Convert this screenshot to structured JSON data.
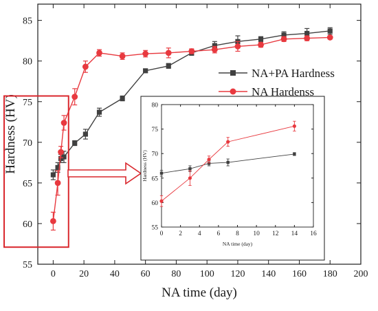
{
  "chart_data": [
    {
      "id": "main",
      "type": "line",
      "xlabel": "NA time (day)",
      "ylabel": "Hardness (HV)",
      "xlim": [
        -10,
        200
      ],
      "ylim": [
        55,
        87
      ],
      "xticks": [
        0,
        20,
        40,
        60,
        80,
        100,
        120,
        140,
        160,
        180,
        200
      ],
      "yticks": [
        55,
        60,
        65,
        70,
        75,
        80,
        85
      ],
      "grid": false,
      "legend_position": "right",
      "series": [
        {
          "name": "NA+PA Hardness",
          "color": "#404040",
          "marker": "square",
          "x": [
            0,
            3,
            5,
            7,
            14,
            21,
            30,
            45,
            60,
            75,
            90,
            105,
            120,
            135,
            150,
            165,
            180
          ],
          "y": [
            66.0,
            66.9,
            68.0,
            68.2,
            69.9,
            71.0,
            73.7,
            75.4,
            78.8,
            79.4,
            81.0,
            81.9,
            82.4,
            82.7,
            83.2,
            83.4,
            83.7
          ],
          "err": [
            0.6,
            0.6,
            0.5,
            0.7,
            0.3,
            0.6,
            0.5,
            0.3,
            0.2,
            0.3,
            0.3,
            0.5,
            0.7,
            0.3,
            0.4,
            0.6,
            0.4
          ]
        },
        {
          "name": "NA Hardenss",
          "color": "#e8393f",
          "marker": "circle",
          "x": [
            0,
            3,
            5,
            7,
            14,
            21,
            30,
            45,
            60,
            75,
            90,
            105,
            120,
            135,
            150,
            165,
            180
          ],
          "y": [
            60.3,
            65.0,
            68.8,
            72.4,
            75.6,
            79.3,
            81.0,
            80.6,
            80.9,
            81.0,
            81.2,
            81.4,
            81.8,
            82.0,
            82.7,
            82.8,
            82.9
          ],
          "err": [
            1.1,
            1.5,
            0.7,
            0.9,
            1.0,
            0.7,
            0.4,
            0.4,
            0.4,
            0.6,
            0.3,
            0.4,
            0.6,
            0.3,
            0.3,
            0.3,
            0.2
          ]
        }
      ]
    },
    {
      "id": "inset",
      "type": "line",
      "xlabel": "NA time (day)",
      "ylabel": "Hardness (HV)",
      "xlim": [
        0,
        16
      ],
      "ylim": [
        55,
        80
      ],
      "xticks": [
        0,
        2,
        4,
        6,
        8,
        10,
        12,
        14,
        16
      ],
      "yticks": [
        55,
        60,
        65,
        70,
        75,
        80
      ],
      "grid": false,
      "series": [
        {
          "name": "",
          "color": "#404040",
          "marker": "square",
          "x": [
            0,
            3,
            5,
            7,
            14
          ],
          "y": [
            66.0,
            66.9,
            68.0,
            68.2,
            69.9
          ],
          "err": [
            0.6,
            0.6,
            0.5,
            0.7,
            0.3
          ]
        },
        {
          "name": "",
          "color": "#e8393f",
          "marker": "circle",
          "x": [
            0,
            3,
            5,
            7,
            14
          ],
          "y": [
            60.3,
            65.0,
            68.8,
            72.4,
            75.6
          ],
          "err": [
            1.1,
            1.5,
            0.7,
            0.9,
            1.0
          ]
        }
      ]
    }
  ],
  "highlight": {
    "color": "#d9262c"
  }
}
